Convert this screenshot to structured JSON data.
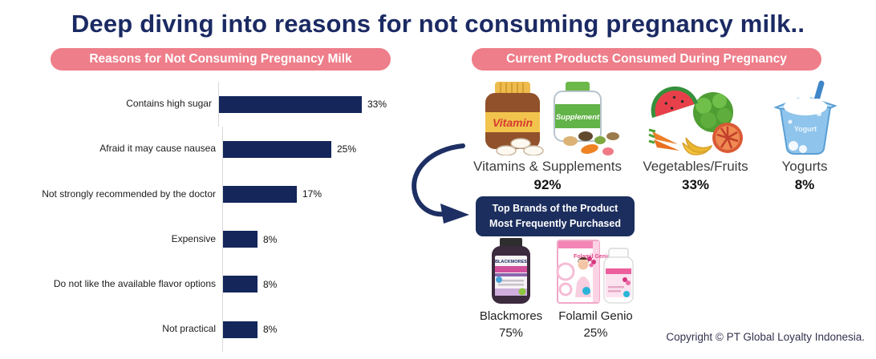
{
  "page_title": "Deep diving into reasons for not consuming pregnancy milk..",
  "left_panel": {
    "header": "Reasons for Not Consuming Pregnancy Milk"
  },
  "right_panel": {
    "header": "Current Products Consumed During Pregnancy",
    "products": [
      {
        "name": "Vitamins & Supplements",
        "value": "92%"
      },
      {
        "name": "Vegetables/Fruits",
        "value": "33%"
      },
      {
        "name": "Yogurts",
        "value": "8%"
      }
    ],
    "top_brands_box": {
      "line1": "Top Brands of the Product",
      "line2": "Most Frequently Purchased"
    },
    "brands": [
      {
        "name": "Blackmores",
        "value": "75%"
      },
      {
        "name": "Folamil Genio",
        "value": "25%"
      }
    ]
  },
  "illustrations": {
    "vitamin_bottle_label": "Vitamin",
    "supplement_bottle_label": "Supplement",
    "yogurt_cup_label": "Yogurt",
    "blackmores_label": "BLACKMORES",
    "folamil_label": "Folamil Genio"
  },
  "footer": {
    "copyright_text": "Copyright © PT Global Loyalty Indonesia."
  },
  "colors": {
    "title_navy": "#1b2a63",
    "bar_navy": "#14265a",
    "pill_pink": "#ee7e8a",
    "box_navy": "#1c2e5e"
  },
  "chart_data": [
    {
      "type": "bar",
      "orientation": "horizontal",
      "title": "Reasons for Not Consuming Pregnancy Milk",
      "categories": [
        "Contains high sugar",
        "Afraid it may cause nausea",
        "Not strongly recommended by the doctor",
        "Expensive",
        "Do not like the available flavor options",
        "Not practical"
      ],
      "values": [
        33,
        25,
        17,
        8,
        8,
        8
      ],
      "unit": "%",
      "xlim": [
        0,
        35
      ],
      "bar_color": "#14265a",
      "grid": false,
      "legend": "none"
    },
    {
      "type": "bar",
      "title": "Current Products Consumed During Pregnancy",
      "categories": [
        "Vitamins & Supplements",
        "Vegetables/Fruits",
        "Yogurts"
      ],
      "values": [
        92,
        33,
        8
      ],
      "unit": "%"
    },
    {
      "type": "bar",
      "title": "Top Brands of the Product Most Frequently Purchased",
      "categories": [
        "Blackmores",
        "Folamil Genio"
      ],
      "values": [
        75,
        25
      ],
      "unit": "%"
    }
  ]
}
